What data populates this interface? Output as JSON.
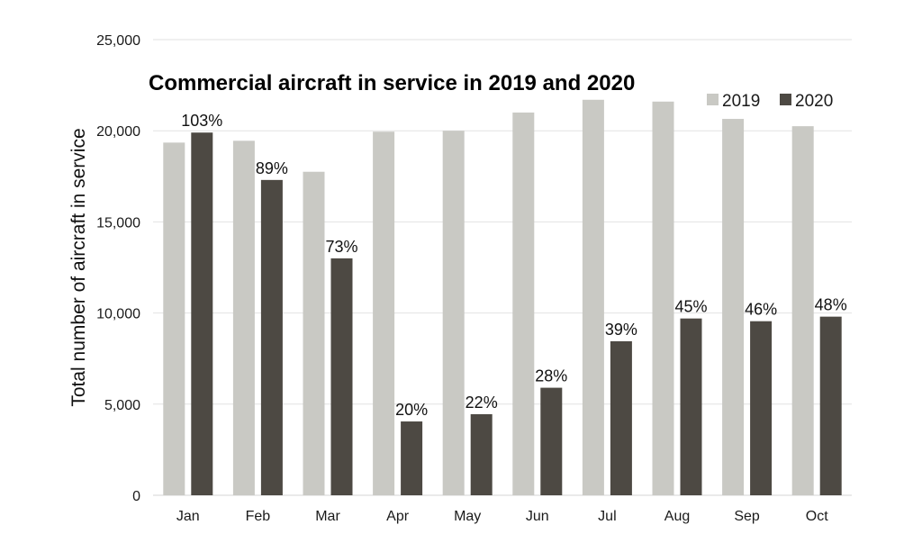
{
  "chart_data": {
    "type": "bar",
    "title": "Commercial aircraft in service in 2019 and 2020",
    "xlabel": "",
    "ylabel": "Total number of aircraft in service",
    "ylim": [
      0,
      25000
    ],
    "yticks": [
      0,
      5000,
      10000,
      15000,
      20000,
      25000
    ],
    "ytick_labels": [
      "0",
      "5,000",
      "10,000",
      "15,000",
      "20,000",
      "25,000"
    ],
    "grid": true,
    "legend_position": "top-right",
    "categories": [
      "Jan",
      "Feb",
      "Mar",
      "Apr",
      "May",
      "Jun",
      "Jul",
      "Aug",
      "Sep",
      "Oct"
    ],
    "series": [
      {
        "name": "2019",
        "color": "#c9c9c4",
        "values": [
          19350,
          19450,
          17750,
          19950,
          20000,
          21000,
          21700,
          21600,
          20650,
          20250
        ]
      },
      {
        "name": "2020",
        "color": "#4d4943",
        "values": [
          19900,
          17300,
          13000,
          4050,
          4450,
          5900,
          8450,
          9700,
          9550,
          9800
        ],
        "data_labels": [
          "103%",
          "89%",
          "73%",
          "20%",
          "22%",
          "28%",
          "39%",
          "45%",
          "46%",
          "48%"
        ]
      }
    ]
  }
}
